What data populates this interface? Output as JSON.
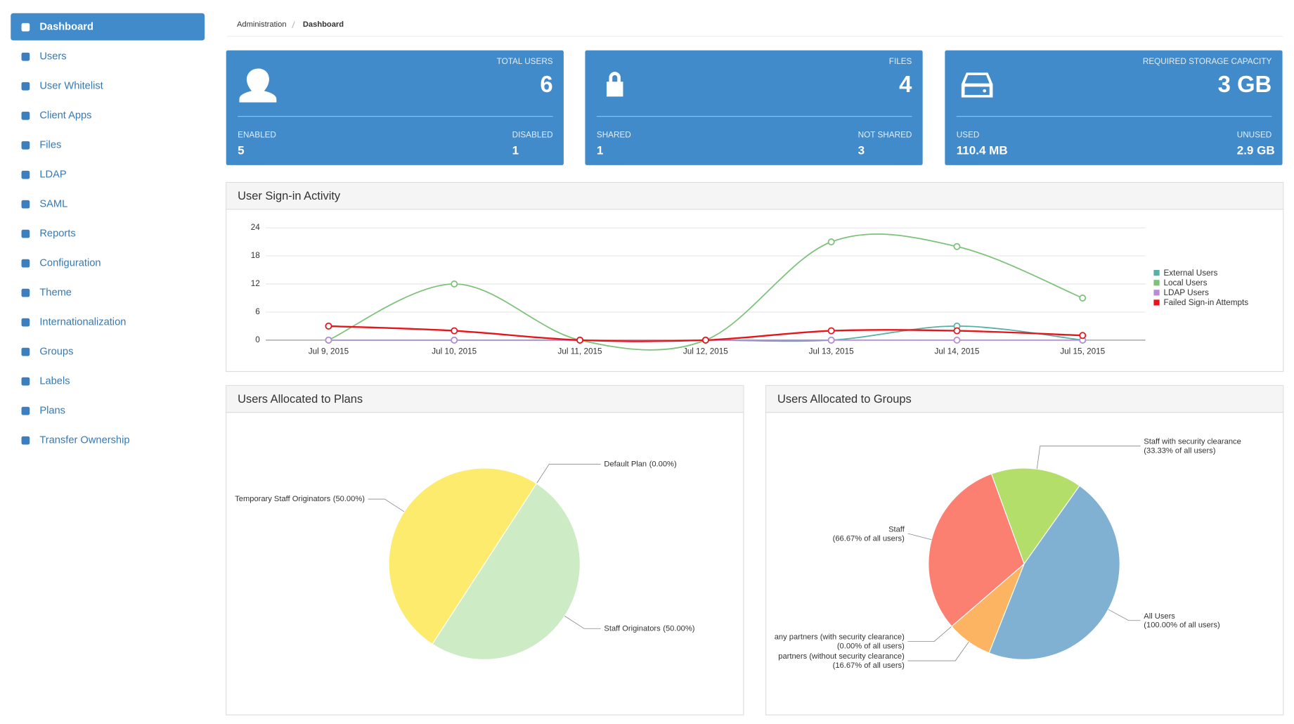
{
  "sidebar": {
    "items": [
      "Dashboard",
      "Users",
      "User Whitelist",
      "Client Apps",
      "Files",
      "LDAP",
      "SAML",
      "Reports",
      "Configuration",
      "Theme",
      "Internationalization",
      "Groups",
      "Labels",
      "Plans",
      "Transfer Ownership"
    ],
    "active": 0
  },
  "breadcrumb": [
    "Administration",
    "Dashboard"
  ],
  "cards": [
    {
      "title": "TOTAL USERS",
      "value": 6,
      "left_label": "ENABLED",
      "left_value": 5,
      "right_label": "DISABLED",
      "right_value": 1
    },
    {
      "title": "FILES",
      "value": 4,
      "left_label": "SHARED",
      "left_value": 1,
      "right_label": "NOT SHARED",
      "right_value": 3
    },
    {
      "title": "REQUIRED STORAGE CAPACITY",
      "value": "3 GB",
      "left_label": "USED",
      "left_value": "110.4 MB",
      "right_label": "UNUSED",
      "right_value": "2.9 GB"
    }
  ],
  "chart_data": [
    {
      "type": "line",
      "title": "User Sign-in Activity",
      "categories": [
        "Jul 9, 2015",
        "Jul 10, 2015",
        "Jul 11, 2015",
        "Jul 12, 2015",
        "Jul 13, 2015",
        "Jul 14, 2015",
        "Jul 15, 2015"
      ],
      "series": [
        {
          "name": "External Users",
          "color": "#55b1a8",
          "values": [
            0,
            0,
            0,
            0,
            0,
            3,
            0
          ]
        },
        {
          "name": "Local Users",
          "color": "#7dc27a",
          "values": [
            0,
            12,
            0,
            0,
            21,
            20,
            9
          ]
        },
        {
          "name": "LDAP Users",
          "color": "#b88ad8",
          "values": [
            0,
            0,
            0,
            0,
            0,
            0,
            0
          ]
        },
        {
          "name": "Failed Sign-in Attempts",
          "color": "#e8141a",
          "values": [
            3,
            2,
            0,
            0,
            2,
            2,
            1
          ]
        }
      ],
      "ylim": [
        0,
        24
      ],
      "yticks": [
        0,
        6,
        12,
        18,
        24
      ],
      "grid": true,
      "legend": "right"
    },
    {
      "type": "pie",
      "title": "Users Allocated to Plans",
      "categories": [
        "Default Plan",
        "Staff Originators",
        "Temporary Staff Originators"
      ],
      "values": [
        0,
        50,
        50
      ],
      "value_labels": [
        "(0.00%)",
        "(50.00%)",
        "(50.00%)"
      ],
      "colors": [
        "#8dd3c7",
        "#cdebc5",
        "#fdeb6e"
      ]
    },
    {
      "type": "pie",
      "title": "Users Allocated to Groups",
      "categories": [
        "Staff with security clearance",
        "All Users",
        "partners (without security clearance)",
        "any partners (with security clearance)",
        "Staff"
      ],
      "values": [
        33.33,
        100,
        16.67,
        0,
        66.67
      ],
      "value_labels": [
        "(33.33% of all users)",
        "(100.00% of all users)",
        "(16.67% of all users)",
        "(0.00% of all users)",
        "(66.67% of all users)"
      ],
      "colors": [
        "#b3de69",
        "#80b1d3",
        "#fdb462",
        "#bebada",
        "#fb8072"
      ]
    }
  ]
}
